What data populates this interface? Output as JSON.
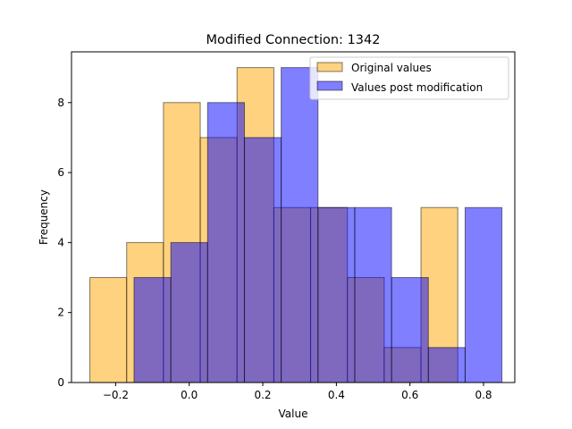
{
  "chart_data": {
    "type": "bar",
    "title": "Modified Connection: 1342",
    "xlabel": "Value",
    "ylabel": "Frequency",
    "xlim": [
      -0.32,
      0.885
    ],
    "ylim": [
      0,
      9.45
    ],
    "xticks": [
      -0.2,
      0.0,
      0.2,
      0.4,
      0.6,
      0.8
    ],
    "xtick_labels": [
      "−0.2",
      "0.0",
      "0.2",
      "0.4",
      "0.6",
      "0.8"
    ],
    "yticks": [
      0,
      2,
      4,
      6,
      8
    ],
    "ytick_labels": [
      "0",
      "2",
      "4",
      "6",
      "8"
    ],
    "grid": false,
    "legend_position": "top-right",
    "series": [
      {
        "name": "Original values",
        "color": "#FFA500",
        "alpha": 0.5,
        "bin_edges": [
          -0.27,
          -0.17,
          -0.07,
          0.03,
          0.13,
          0.23,
          0.33,
          0.43,
          0.53,
          0.63,
          0.73
        ],
        "values": [
          3,
          4,
          8,
          7,
          9,
          5,
          5,
          3,
          1,
          5
        ]
      },
      {
        "name": "Values post modification",
        "color": "#0000FF",
        "alpha": 0.5,
        "bin_edges": [
          -0.15,
          -0.05,
          0.05,
          0.15,
          0.25,
          0.35,
          0.45,
          0.55,
          0.65,
          0.75,
          0.85
        ],
        "values": [
          3,
          4,
          8,
          7,
          9,
          5,
          5,
          3,
          1,
          5
        ]
      }
    ]
  }
}
